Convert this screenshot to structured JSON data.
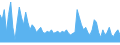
{
  "chart_data": {
    "type": "area",
    "values": [
      55,
      45,
      65,
      20,
      55,
      80,
      30,
      5,
      40,
      70,
      50,
      35,
      60,
      40,
      25,
      35,
      30,
      20,
      25,
      30,
      20,
      18,
      22,
      20,
      25,
      18,
      20,
      22,
      18,
      22,
      20,
      25,
      18,
      15,
      18,
      20,
      65,
      50,
      35,
      25,
      30,
      20,
      15,
      25,
      45,
      40,
      20,
      10,
      25,
      15,
      20,
      30,
      15,
      12,
      20,
      25,
      15
    ],
    "color": "#5ab3f0",
    "ylim": [
      -5,
      84
    ],
    "grid": false,
    "tick_labels": false
  }
}
